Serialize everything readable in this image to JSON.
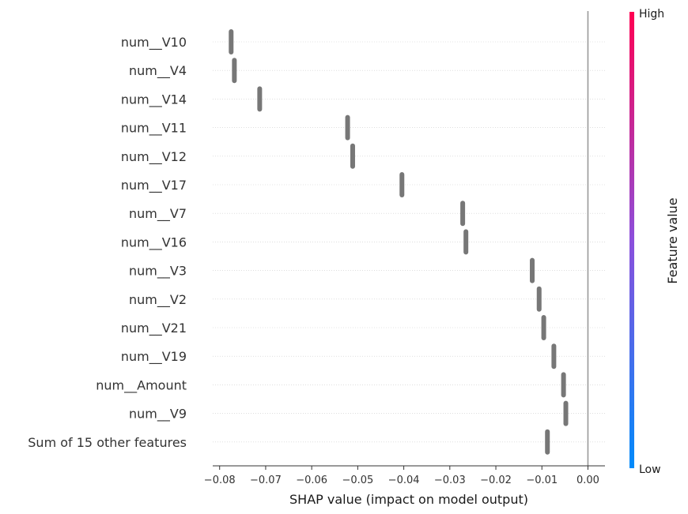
{
  "chart_data": {
    "type": "scatter",
    "style": "shap-beeswarm",
    "features": [
      {
        "name": "num__V10",
        "value": -0.0775
      },
      {
        "name": "num__V4",
        "value": -0.0768
      },
      {
        "name": "num__V14",
        "value": -0.0713
      },
      {
        "name": "num__V11",
        "value": -0.0522
      },
      {
        "name": "num__V12",
        "value": -0.0511
      },
      {
        "name": "num__V17",
        "value": -0.0404
      },
      {
        "name": "num__V7",
        "value": -0.0272
      },
      {
        "name": "num__V16",
        "value": -0.0265
      },
      {
        "name": "num__V3",
        "value": -0.0121
      },
      {
        "name": "num__V2",
        "value": -0.0106
      },
      {
        "name": "num__V21",
        "value": -0.0096
      },
      {
        "name": "num__V19",
        "value": -0.0074
      },
      {
        "name": "num__Amount",
        "value": -0.0053
      },
      {
        "name": "num__V9",
        "value": -0.0048
      },
      {
        "name": "Sum of 15 other features",
        "value": -0.0088
      }
    ],
    "xticks": [
      -0.08,
      -0.07,
      -0.06,
      -0.05,
      -0.04,
      -0.03,
      -0.02,
      -0.01,
      0.0
    ],
    "xtick_labels": [
      "−0.08",
      "−0.07",
      "−0.06",
      "−0.05",
      "−0.04",
      "−0.03",
      "−0.02",
      "−0.01",
      "0.00"
    ],
    "xlim": [
      -0.0815,
      0.0037
    ],
    "xlabel": "SHAP value (impact on model output)",
    "colorbar": {
      "label": "Feature value",
      "high_label": "High",
      "low_label": "Low",
      "high_color": "#ff0052",
      "low_color": "#008bfb"
    },
    "marker_color": "#777777",
    "zero_line_color": "#999999",
    "grid": "dotted horizontal row lines"
  }
}
